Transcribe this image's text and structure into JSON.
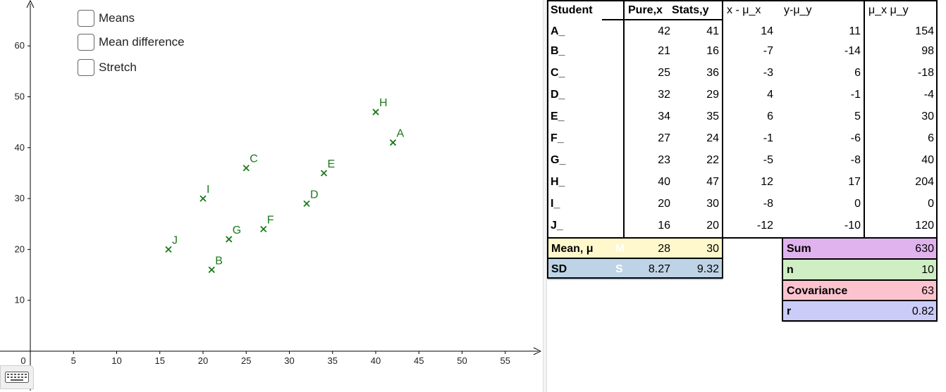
{
  "graphics": {
    "x_axis_ticks": [
      "0",
      "5",
      "10",
      "15",
      "20",
      "25",
      "30",
      "35",
      "40",
      "45",
      "50",
      "55"
    ],
    "y_axis_ticks": [
      "10",
      "20",
      "30",
      "40",
      "50",
      "60"
    ],
    "checkboxes": [
      {
        "label": "Means",
        "checked": false
      },
      {
        "label": "Mean difference",
        "checked": false
      },
      {
        "label": "Stretch",
        "checked": false
      }
    ],
    "point_color": "#1a7a1a",
    "points": [
      {
        "label": "A",
        "x": 42,
        "y": 41
      },
      {
        "label": "B",
        "x": 21,
        "y": 16
      },
      {
        "label": "C",
        "x": 25,
        "y": 36
      },
      {
        "label": "D",
        "x": 32,
        "y": 29
      },
      {
        "label": "E",
        "x": 34,
        "y": 35
      },
      {
        "label": "F",
        "x": 27,
        "y": 24
      },
      {
        "label": "G",
        "x": 23,
        "y": 22
      },
      {
        "label": "H",
        "x": 40,
        "y": 47
      },
      {
        "label": "I",
        "x": 20,
        "y": 30
      },
      {
        "label": "J",
        "x": 16,
        "y": 20
      }
    ],
    "keyboard_icon": "keyboard-icon"
  },
  "table": {
    "headers": [
      "Student",
      "Pure,x",
      "Stats,y",
      "x - μ_x",
      "y-μ_y",
      "μ_x μ_y"
    ],
    "rows": [
      [
        "A_",
        "42",
        "41",
        "14",
        "11",
        "154"
      ],
      [
        "B_",
        "21",
        "16",
        "-7",
        "-14",
        "98"
      ],
      [
        "C_",
        "25",
        "36",
        "-3",
        "6",
        "-18"
      ],
      [
        "D_",
        "32",
        "29",
        "4",
        "-1",
        "-4"
      ],
      [
        "E_",
        "34",
        "35",
        "6",
        "5",
        "30"
      ],
      [
        "F_",
        "27",
        "24",
        "-1",
        "-6",
        "6"
      ],
      [
        "G_",
        "23",
        "22",
        "-5",
        "-8",
        "40"
      ],
      [
        "H_",
        "40",
        "47",
        "12",
        "17",
        "204"
      ],
      [
        "I_",
        "20",
        "30",
        "-8",
        "0",
        "0"
      ],
      [
        "J_",
        "16",
        "20",
        "-12",
        "-10",
        "120"
      ]
    ],
    "mean": {
      "label": "Mean, μ",
      "tag": "M",
      "x": "28",
      "y": "30",
      "color": "#fff8cc"
    },
    "sd": {
      "label": "SD",
      "tag": "S",
      "x": "8.27",
      "y": "9.32",
      "color": "#bed3e6"
    },
    "summary": [
      {
        "label": "Sum",
        "value": "630",
        "color": "#e0b3ee"
      },
      {
        "label": "n",
        "value": "10",
        "color": "#cfeec4"
      },
      {
        "label": "Covariance",
        "value": "63",
        "color": "#fcc3cf"
      },
      {
        "label": "r",
        "value": "0.82",
        "color": "#ccccf8"
      }
    ]
  }
}
